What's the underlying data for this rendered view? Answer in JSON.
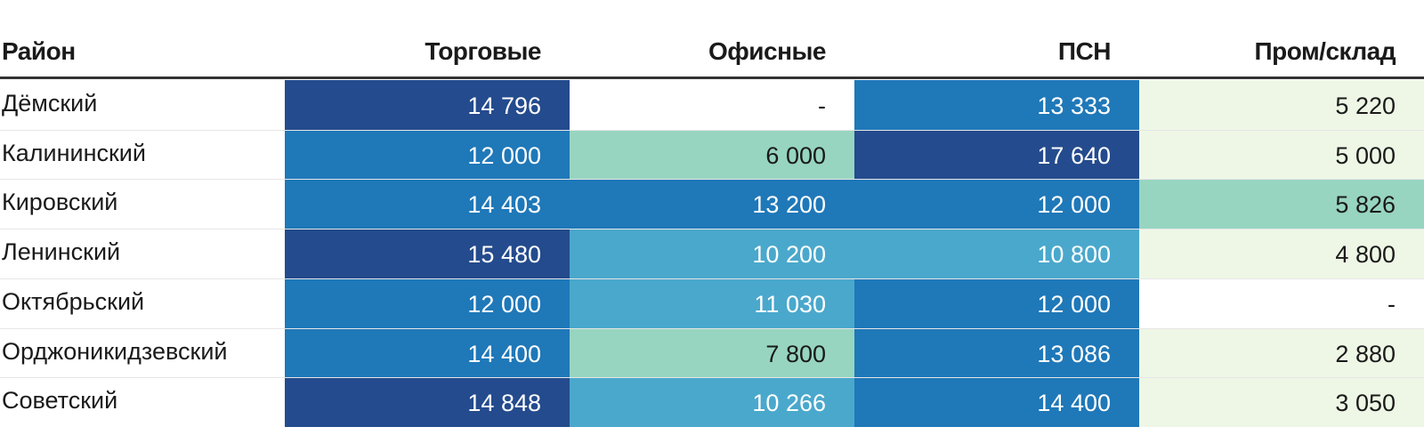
{
  "chart_data": {
    "type": "table",
    "columns": [
      "Район",
      "Торговые",
      "Офисные",
      "ПСН",
      "Пром/склад"
    ],
    "rows": [
      {
        "name": "Дёмский",
        "values": [
          14796,
          null,
          13333,
          5220
        ],
        "labels": [
          "14 796",
          "-",
          "13 333",
          "5 220"
        ]
      },
      {
        "name": "Калининский",
        "values": [
          12000,
          6000,
          17640,
          5000
        ],
        "labels": [
          "12 000",
          "6 000",
          "17 640",
          "5 000"
        ]
      },
      {
        "name": "Кировский",
        "values": [
          14403,
          13200,
          12000,
          5826
        ],
        "labels": [
          "14 403",
          "13 200",
          "12 000",
          "5 826"
        ]
      },
      {
        "name": "Ленинский",
        "values": [
          15480,
          10200,
          10800,
          4800
        ],
        "labels": [
          "15 480",
          "10 200",
          "10 800",
          "4 800"
        ]
      },
      {
        "name": "Октябрьский",
        "values": [
          12000,
          11030,
          12000,
          null
        ],
        "labels": [
          "12 000",
          "11 030",
          "12 000",
          "-"
        ]
      },
      {
        "name": "Орджоникидзевский",
        "values": [
          14400,
          7800,
          13086,
          2880
        ],
        "labels": [
          "14 400",
          "7 800",
          "13 086",
          "2 880"
        ]
      },
      {
        "name": "Советский",
        "values": [
          14848,
          10266,
          14400,
          3050
        ],
        "labels": [
          "14 848",
          "10 266",
          "14 400",
          "3 050"
        ]
      }
    ],
    "color_scale": {
      "empty": "#ffffff",
      "lowest": "#eef7e6",
      "low": "#97d5c0",
      "mid": "#4aa8cc",
      "high": "#1f78b8",
      "highest": "#244b8d"
    }
  }
}
